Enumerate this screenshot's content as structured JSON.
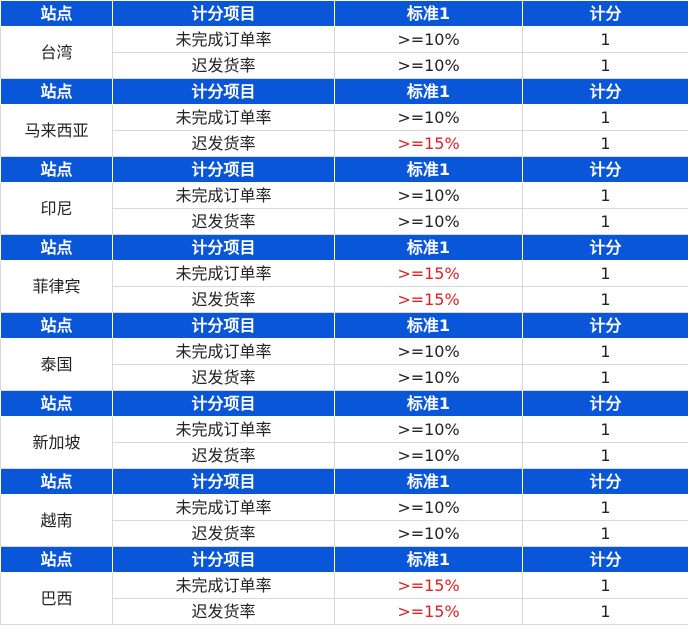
{
  "headers": [
    "站点",
    "计分项目",
    "标准1",
    "计分"
  ],
  "colors": {
    "header_bg": "#0a56d8",
    "header_text": "#ffffff",
    "highlight": "#e02020"
  },
  "groups": [
    {
      "site": "台湾",
      "rows": [
        {
          "item": "未完成订单率",
          "standard": ">=10%",
          "score": "1",
          "highlight": false
        },
        {
          "item": "迟发货率",
          "standard": ">=10%",
          "score": "1",
          "highlight": false
        }
      ]
    },
    {
      "site": "马来西亚",
      "rows": [
        {
          "item": "未完成订单率",
          "standard": ">=10%",
          "score": "1",
          "highlight": false
        },
        {
          "item": "迟发货率",
          "standard": ">=15%",
          "score": "1",
          "highlight": true
        }
      ]
    },
    {
      "site": "印尼",
      "rows": [
        {
          "item": "未完成订单率",
          "standard": ">=10%",
          "score": "1",
          "highlight": false
        },
        {
          "item": "迟发货率",
          "standard": ">=10%",
          "score": "1",
          "highlight": false
        }
      ]
    },
    {
      "site": "菲律宾",
      "rows": [
        {
          "item": "未完成订单率",
          "standard": ">=15%",
          "score": "1",
          "highlight": true
        },
        {
          "item": "迟发货率",
          "standard": ">=15%",
          "score": "1",
          "highlight": true
        }
      ]
    },
    {
      "site": "泰国",
      "rows": [
        {
          "item": "未完成订单率",
          "standard": ">=10%",
          "score": "1",
          "highlight": false
        },
        {
          "item": "迟发货率",
          "standard": ">=10%",
          "score": "1",
          "highlight": false
        }
      ]
    },
    {
      "site": "新加坡",
      "rows": [
        {
          "item": "未完成订单率",
          "standard": ">=10%",
          "score": "1",
          "highlight": false
        },
        {
          "item": "迟发货率",
          "standard": ">=10%",
          "score": "1",
          "highlight": false
        }
      ]
    },
    {
      "site": "越南",
      "rows": [
        {
          "item": "未完成订单率",
          "standard": ">=10%",
          "score": "1",
          "highlight": false
        },
        {
          "item": "迟发货率",
          "standard": ">=10%",
          "score": "1",
          "highlight": false
        }
      ]
    },
    {
      "site": "巴西",
      "rows": [
        {
          "item": "未完成订单率",
          "standard": ">=15%",
          "score": "1",
          "highlight": true
        },
        {
          "item": "迟发货率",
          "standard": ">=15%",
          "score": "1",
          "highlight": true
        }
      ]
    }
  ]
}
